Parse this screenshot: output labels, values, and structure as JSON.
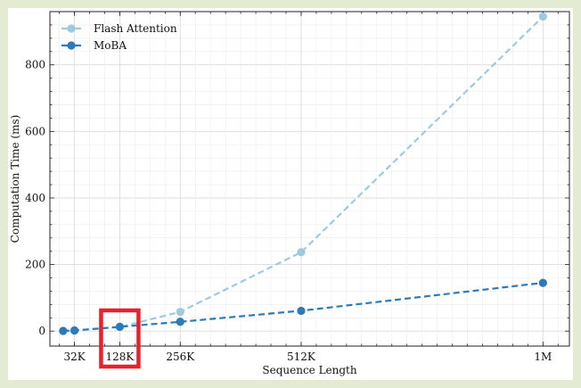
{
  "chart_data": {
    "type": "line",
    "xlabel": "Sequence Length",
    "ylabel": "Computation Time (ms)",
    "x_tick_labels": [
      "32K",
      "128K",
      "256K",
      "512K",
      "1M"
    ],
    "x_tick_values": [
      32,
      128,
      256,
      512,
      1024
    ],
    "y_ticks": [
      0,
      200,
      400,
      600,
      800
    ],
    "xlim": [
      -20,
      1080
    ],
    "ylim": [
      -45,
      960
    ],
    "grid": true,
    "legend_position": "top-left",
    "series": [
      {
        "name": "Flash Attention",
        "color": "#9ecae1",
        "x": [
          8,
          32,
          128,
          256,
          512,
          1024
        ],
        "y": [
          0.5,
          2,
          12,
          58,
          237,
          945
        ]
      },
      {
        "name": "MoBA",
        "color": "#2b7bba",
        "x": [
          8,
          32,
          128,
          256,
          512,
          1024
        ],
        "y": [
          0.5,
          2,
          13,
          28,
          61,
          145
        ]
      }
    ],
    "highlight": {
      "x_tick": "128K",
      "color": "#e8212b"
    }
  }
}
